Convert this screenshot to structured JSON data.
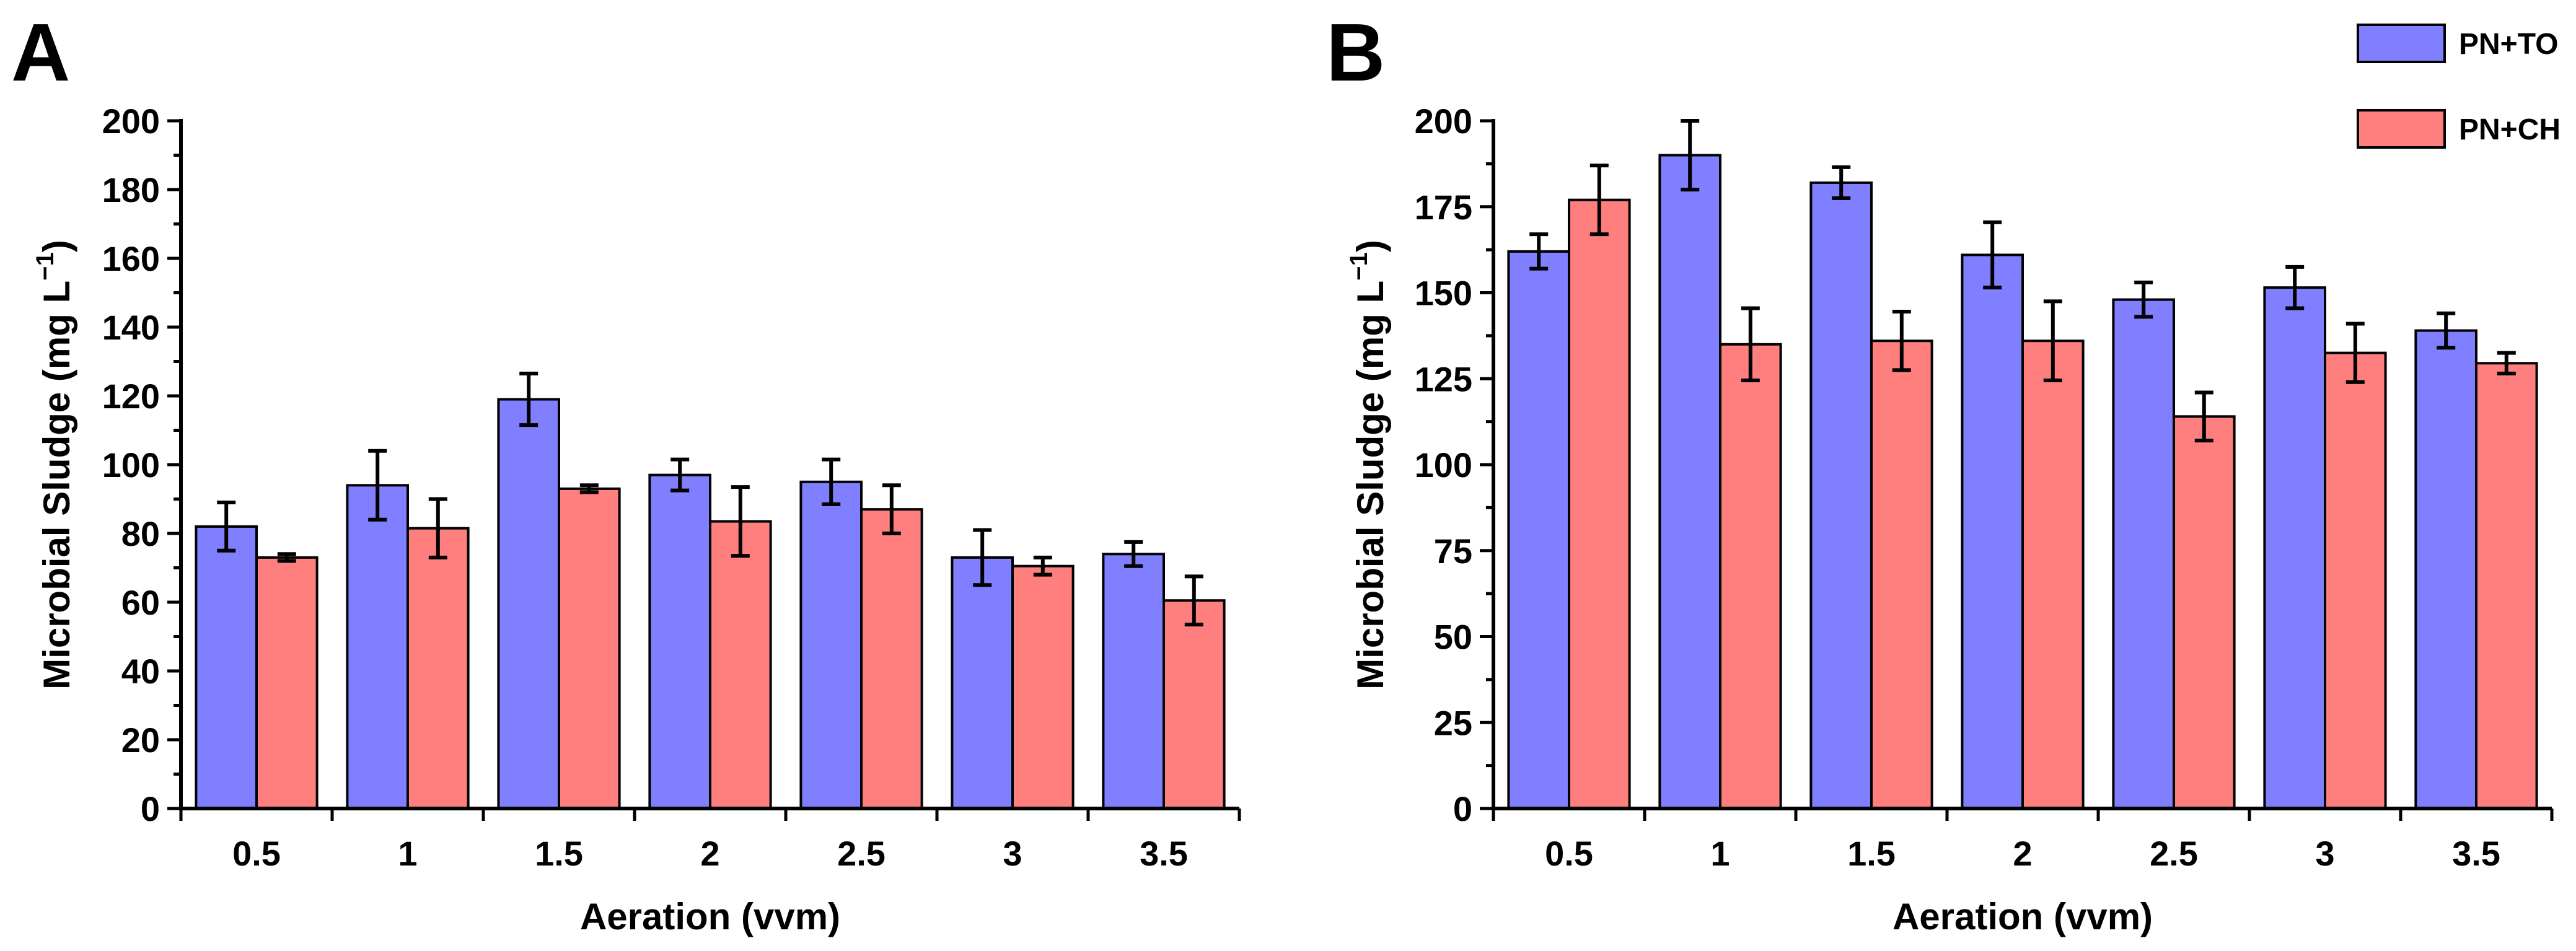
{
  "chart_data": [
    {
      "panel_label": "A",
      "type": "bar",
      "categories": [
        "0.5",
        "1",
        "1.5",
        "2",
        "2.5",
        "3",
        "3.5"
      ],
      "series": [
        {
          "name": "PN+TO",
          "color": "#7f7fff",
          "values": [
            82,
            94,
            119,
            97,
            95,
            73,
            74
          ],
          "errors": [
            7,
            10,
            7.5,
            4.5,
            6.5,
            8,
            3.5
          ]
        },
        {
          "name": "PN+CH",
          "color": "#ff7f7f",
          "values": [
            73,
            81.5,
            93,
            83.5,
            87,
            70.5,
            60.5
          ],
          "errors": [
            1,
            8.5,
            1,
            10,
            7,
            2.5,
            7
          ]
        }
      ],
      "xlabel": "Aeration (vvm)",
      "ylabel_main": "Microbial Sludge (mg L",
      "ylabel_sup": "−1",
      "ylabel_end": ")",
      "ylim": [
        0,
        200
      ],
      "yticks": [
        "0",
        "20",
        "40",
        "60",
        "80",
        "100",
        "120",
        "140",
        "160",
        "180",
        "200"
      ],
      "legend": null,
      "grid": false
    },
    {
      "panel_label": "B",
      "type": "bar",
      "categories": [
        "0.5",
        "1",
        "1.5",
        "2",
        "2.5",
        "3",
        "3.5"
      ],
      "series": [
        {
          "name": "PN+TO",
          "color": "#7f7fff",
          "values": [
            162,
            190,
            182,
            161,
            148,
            151.5,
            139
          ],
          "errors": [
            5,
            10,
            4.5,
            9.5,
            5,
            6,
            5
          ]
        },
        {
          "name": "PN+CH",
          "color": "#ff7f7f",
          "values": [
            177,
            135,
            136,
            136,
            114,
            132.5,
            129.5
          ],
          "errors": [
            10,
            10.5,
            8.5,
            11.5,
            7,
            8.5,
            3
          ]
        }
      ],
      "xlabel": "Aeration (vvm)",
      "ylabel_main": "Microbial Sludge (mg L",
      "ylabel_sup": "−1",
      "ylabel_end": ")",
      "ylim": [
        0,
        200
      ],
      "yticks": [
        "0",
        "25",
        "50",
        "75",
        "100",
        "125",
        "150",
        "175",
        "200"
      ],
      "legend": "top-right",
      "grid": false
    }
  ]
}
